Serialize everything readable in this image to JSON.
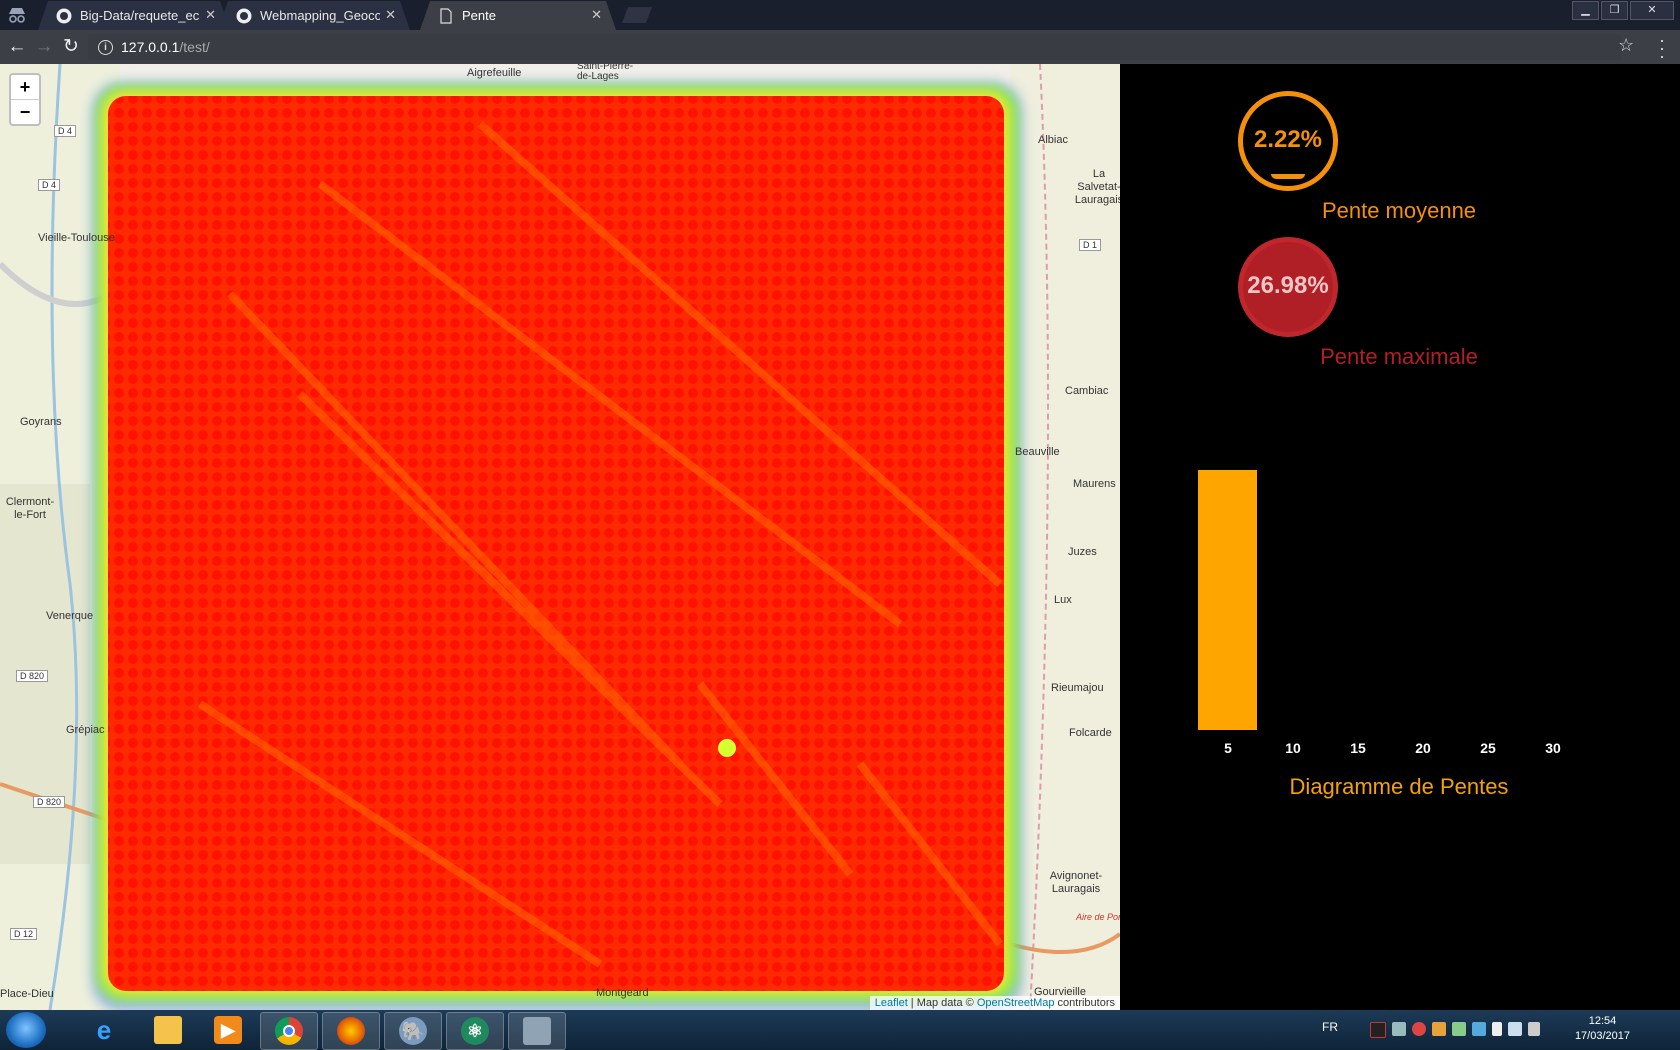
{
  "browser": {
    "tabs": [
      {
        "title": "Big-Data/requete_echant",
        "icon": "github-icon",
        "active": false
      },
      {
        "title": "Webmapping_Geocodag",
        "icon": "github-icon",
        "active": false
      },
      {
        "title": "Pente",
        "icon": "page-icon",
        "active": true
      }
    ],
    "url_host": "127.0.0.1",
    "url_path": "/test/",
    "close_glyph": "✕"
  },
  "map": {
    "zoom_in_label": "+",
    "zoom_out_label": "−",
    "place_labels": [
      "Aigrefeuille",
      "Saint-Pierre-de-Lages",
      "Albiac",
      "La Salvetat-Lauragais",
      "Vieille-Toulouse",
      "Goyrans",
      "Clermont-le-Fort",
      "Venerque",
      "Grépiac",
      "Cambiac",
      "Beauville",
      "Maurens",
      "Juzes",
      "Lux",
      "Rieumajou",
      "Folcarde",
      "Avignonet-Lauragais",
      "Gourvieille",
      "Montgeard",
      "Aire de Port-Lauragais",
      "Place-Dieu"
    ],
    "road_labels": [
      "D 4",
      "D 4",
      "D 1",
      "D 820",
      "D 820",
      "D 12"
    ],
    "attribution": {
      "leaflet": "Leaflet",
      "separator": " | Map data © ",
      "osm": "OpenStreetMap",
      "suffix": " contributors"
    }
  },
  "stats": {
    "mean_slope_value": "2.22%",
    "mean_slope_label": "Pente moyenne",
    "max_slope_value": "26.98%",
    "max_slope_label": "Pente maximale",
    "colors": {
      "mean": "#f5900c",
      "max": "#b01f25"
    }
  },
  "chart_data": {
    "type": "bar",
    "title": "Diagramme de Pentes",
    "x_ticks": [
      "5",
      "10",
      "15",
      "20",
      "25",
      "30"
    ],
    "bars": [
      {
        "bin_upper": 5,
        "value": 1.0
      }
    ],
    "bar_color": "#ffa500",
    "grid": false
  },
  "taskbar": {
    "apps": [
      "internet-explorer-icon",
      "file-explorer-icon",
      "media-player-icon",
      "chrome-icon",
      "firefox-icon",
      "pgadmin-icon",
      "atom-icon",
      "archive-icon"
    ],
    "language": "FR",
    "time": "12:54",
    "date": "17/03/2017"
  }
}
